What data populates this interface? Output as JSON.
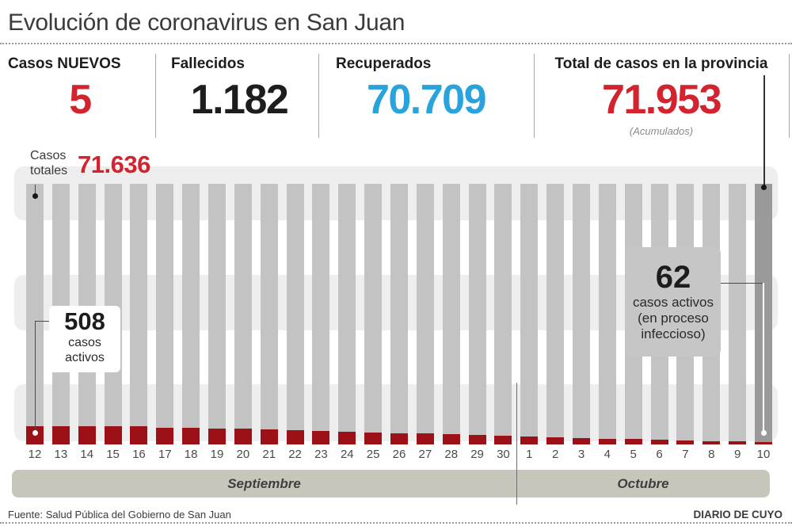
{
  "header": {
    "title": "Evolución de coronavirus en San Juan"
  },
  "stats": [
    {
      "label": "Casos NUEVOS",
      "value": "5",
      "color": "#d2232e"
    },
    {
      "label": "Fallecidos",
      "value": "1.182",
      "color": "#1d1d1d"
    },
    {
      "label": "Recuperados",
      "value": "70.709",
      "color": "#29a3db"
    },
    {
      "label": "Total de casos en la provincia",
      "value": "71.953",
      "sub": "(Acumulados)",
      "color": "#d2232e"
    }
  ],
  "chart_data": {
    "type": "bar",
    "title": "Evolución de coronavirus en San Juan",
    "categories": [
      "12",
      "13",
      "14",
      "15",
      "16",
      "17",
      "18",
      "19",
      "20",
      "21",
      "22",
      "23",
      "24",
      "25",
      "26",
      "27",
      "28",
      "29",
      "30",
      "1",
      "2",
      "3",
      "4",
      "5",
      "6",
      "7",
      "8",
      "9",
      "10"
    ],
    "month_groups": [
      {
        "label": "Septiembre",
        "count": 19
      },
      {
        "label": "Octubre",
        "count": 10
      }
    ],
    "series": [
      {
        "name": "Casos totales",
        "color": "#c3c3c3",
        "last_bar_color": "#9a9a9a",
        "estimated": true,
        "values": [
          71636,
          71648,
          71659,
          71670,
          71681,
          71692,
          71703,
          71714,
          71725,
          71736,
          71747,
          71758,
          71769,
          71780,
          71791,
          71802,
          71813,
          71824,
          71835,
          71846,
          71857,
          71868,
          71879,
          71890,
          71901,
          71912,
          71925,
          71939,
          71953
        ]
      },
      {
        "name": "Casos activos (en proceso infeccioso)",
        "color": "#9b1117",
        "estimated": true,
        "values": [
          508,
          506,
          504,
          502,
          500,
          472,
          462,
          448,
          432,
          420,
          400,
          382,
          360,
          336,
          316,
          300,
          282,
          262,
          240,
          212,
          196,
          180,
          164,
          150,
          136,
          118,
          98,
          78,
          62
        ]
      }
    ],
    "labeled_points": {
      "casos_totales_first": {
        "category": "12 Septiembre",
        "value": 71636
      },
      "casos_activos_first": {
        "category": "12 Septiembre",
        "value": 508
      },
      "casos_activos_last": {
        "category": "10 Octubre",
        "value": 62
      },
      "total_acumulado_last": {
        "category": "10 Octubre",
        "value": 71953
      }
    },
    "ylim": [
      0,
      71953
    ],
    "grid": false,
    "legend": false
  },
  "annotations": {
    "totales_label_line1": "Casos",
    "totales_label_line2": "totales",
    "totales_value": "71.636",
    "active_first_value": "508",
    "active_first_line1": "casos",
    "active_first_line2": "activos",
    "active_last_value": "62",
    "active_last_line1": "casos activos",
    "active_last_line2": "(en proceso",
    "active_last_line3": "infeccioso)"
  },
  "footer": {
    "source": "Fuente: Salud Pública del Gobierno de San Juan",
    "brand": "DIARIO DE CUYO"
  }
}
